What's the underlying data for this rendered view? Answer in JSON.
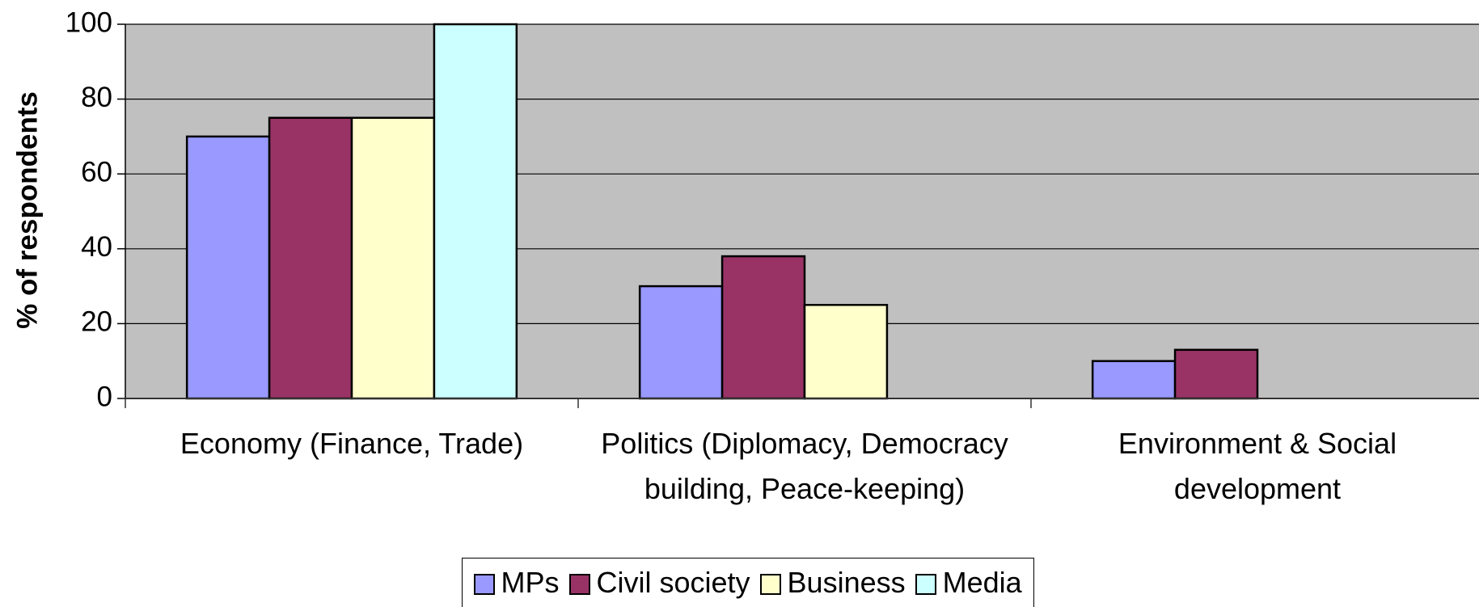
{
  "chart_data": {
    "type": "bar",
    "y_label": "% of respondents",
    "categories": [
      "Economy (Finance, Trade)",
      "Politics (Diplomacy, Democracy building, Peace-keeping)",
      "Environment & Social development"
    ],
    "series": [
      {
        "name": "MPs",
        "color": "#9999ff",
        "values": [
          70,
          30,
          10
        ]
      },
      {
        "name": "Civil society",
        "color": "#993366",
        "values": [
          75,
          38,
          13
        ]
      },
      {
        "name": "Business",
        "color": "#ffffcc",
        "values": [
          75,
          25,
          null
        ]
      },
      {
        "name": "Media",
        "color": "#ccffff",
        "values": [
          100,
          null,
          null
        ]
      }
    ],
    "ylim": [
      0,
      100
    ],
    "yticks": [
      0,
      20,
      40,
      60,
      80,
      100
    ],
    "grid": true,
    "legend": "bottom"
  }
}
